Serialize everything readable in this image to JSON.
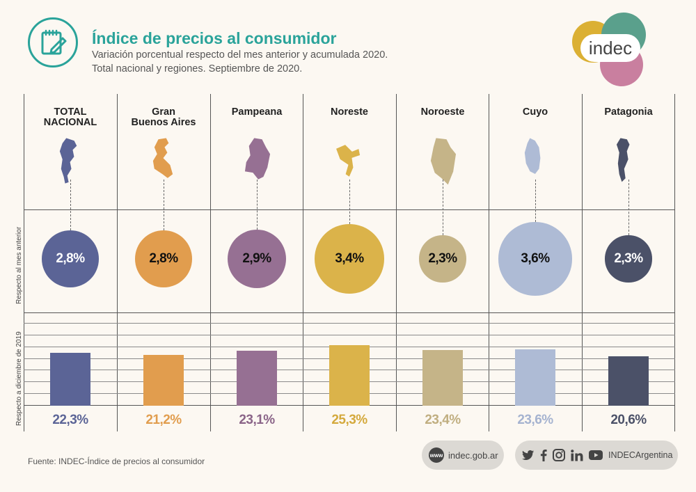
{
  "header": {
    "title": "Índice de precios al consumidor",
    "subtitle_line1": "Variación porcentual respecto del mes anterior y acumulada 2020.",
    "subtitle_line2": "Total nacional y regiones. Septiembre de 2020."
  },
  "logo": {
    "text": "indec"
  },
  "row_labels": {
    "monthly": "Respecto al mes anterior",
    "cumulative": "Respecto a diciembre de 2019"
  },
  "regions": [
    {
      "name": "TOTAL NACIONAL",
      "line1": "TOTAL",
      "line2": "NACIONAL",
      "monthly": "2,8%",
      "monthly_value": 2.8,
      "cumulative": "22,3%",
      "cumulative_value": 22.3,
      "color": "#5b6496",
      "text_color": "#5b6496"
    },
    {
      "name": "Gran Buenos Aires",
      "line1": "Gran",
      "line2": "Buenos Aires",
      "monthly": "2,8%",
      "monthly_value": 2.8,
      "cumulative": "21,2%",
      "cumulative_value": 21.2,
      "color": "#e19d4e",
      "text_color": "#e19d4e"
    },
    {
      "name": "Pampeana",
      "line1": "Pampeana",
      "line2": "",
      "monthly": "2,9%",
      "monthly_value": 2.9,
      "cumulative": "23,1%",
      "cumulative_value": 23.1,
      "color": "#967093",
      "text_color": "#8a6488"
    },
    {
      "name": "Noreste",
      "line1": "Noreste",
      "line2": "",
      "monthly": "3,4%",
      "monthly_value": 3.4,
      "cumulative": "25,3%",
      "cumulative_value": 25.3,
      "color": "#dbb34a",
      "text_color": "#d4a93c"
    },
    {
      "name": "Noroeste",
      "line1": "Noroeste",
      "line2": "",
      "monthly": "2,3%",
      "monthly_value": 2.3,
      "cumulative": "23,4%",
      "cumulative_value": 23.4,
      "color": "#c5b488",
      "text_color": "#c0ae80"
    },
    {
      "name": "Cuyo",
      "line1": "Cuyo",
      "line2": "",
      "monthly": "3,6%",
      "monthly_value": 3.6,
      "cumulative": "23,6%",
      "cumulative_value": 23.6,
      "color": "#aebbd5",
      "text_color": "#a5b3d0"
    },
    {
      "name": "Patagonia",
      "line1": "Patagonia",
      "line2": "",
      "monthly": "2,3%",
      "monthly_value": 2.3,
      "cumulative": "20,6%",
      "cumulative_value": 20.6,
      "color": "#4b5168",
      "text_color": "#4b5168"
    }
  ],
  "footer": {
    "source": "Fuente: INDEC-Índice de precios al consumidor",
    "www_badge": "www",
    "website": "indec.gob.ar",
    "social_handle": "INDECArgentina",
    "social_icons": [
      "twitter-icon",
      "facebook-icon",
      "instagram-icon",
      "linkedin-icon",
      "youtube-icon"
    ]
  }
}
